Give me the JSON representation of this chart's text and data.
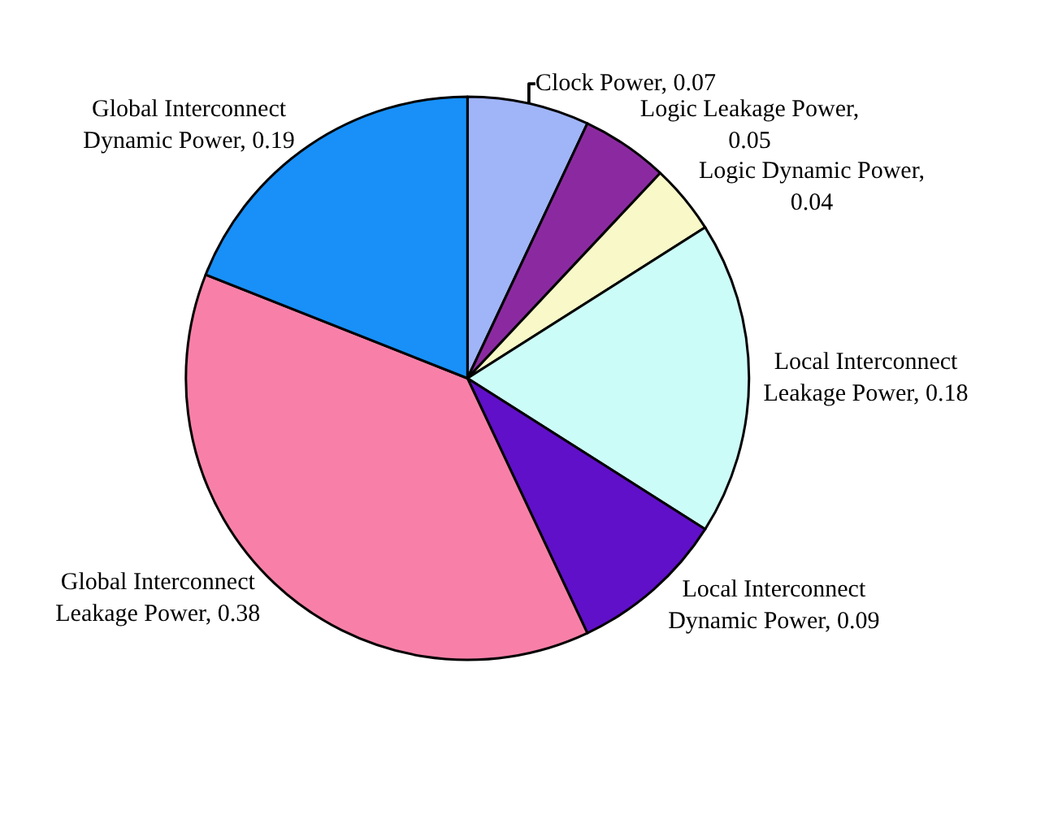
{
  "chart_data": {
    "type": "pie",
    "categories": [
      "Clock Power, 0.07",
      "Logic Leakage Power, 0.05",
      "Logic Dynamic Power, 0.04",
      "Local Interconnect Leakage Power, 0.18",
      "Local Interconnect Dynamic Power, 0.09",
      "Global Interconnect Leakage Power, 0.38",
      "Global Interconnect Dynamic Power, 0.19"
    ],
    "values": [
      0.07,
      0.05,
      0.04,
      0.18,
      0.09,
      0.38,
      0.19
    ],
    "colors": [
      "#a0b4f8",
      "#8b2aa0",
      "#f8f8c8",
      "#ccfcf8",
      "#6010c8",
      "#f880a8",
      "#1890f8"
    ],
    "legend": false
  }
}
